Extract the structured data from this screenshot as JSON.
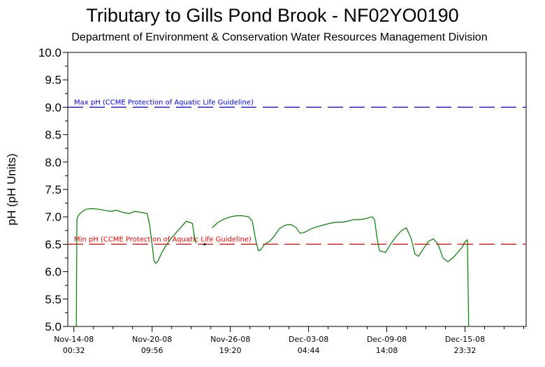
{
  "chart_data": {
    "type": "line",
    "title": "Tributary to Gills Pond Brook - NF02YO0190",
    "subtitle": "Department of Environment & Conservation Water Resources Management Division",
    "ylabel": "pH (pH Units)",
    "xlabel": "",
    "ylim": [
      5.0,
      10.0
    ],
    "y_ticks": [
      {
        "value": 5.0,
        "label": "5.0"
      },
      {
        "value": 5.5,
        "label": "5.5"
      },
      {
        "value": 6.0,
        "label": "6.0"
      },
      {
        "value": 6.5,
        "label": "6.5"
      },
      {
        "value": 7.0,
        "label": "7.0"
      },
      {
        "value": 7.5,
        "label": "7.5"
      },
      {
        "value": 8.0,
        "label": "8.0"
      },
      {
        "value": 8.5,
        "label": "8.5"
      },
      {
        "value": 9.0,
        "label": "9.0"
      },
      {
        "value": 9.5,
        "label": "9.5"
      },
      {
        "value": 10.0,
        "label": "10.0"
      }
    ],
    "x_unit": "days",
    "xlim": [
      -0.5,
      37.0
    ],
    "x_ticks": [
      {
        "value": 0.0,
        "line1": "Nov-14-08",
        "line2": "00:32"
      },
      {
        "value": 6.4,
        "line1": "Nov-20-08",
        "line2": "09:56"
      },
      {
        "value": 12.8,
        "line1": "Nov-26-08",
        "line2": "19:20"
      },
      {
        "value": 19.2,
        "line1": "Dec-03-08",
        "line2": "04:44"
      },
      {
        "value": 25.6,
        "line1": "Dec-09-08",
        "line2": "14:08"
      },
      {
        "value": 32.0,
        "line1": "Dec-15-08",
        "line2": "23:32"
      }
    ],
    "guidelines": [
      {
        "name": "Max pH (CCME Protection of Aquatic Life Guideline)",
        "value": 9.0,
        "color": "#0000ff"
      },
      {
        "name": "Min pH (CCME Protection of Aquatic Life Guideline)",
        "value": 6.5,
        "color": "#ff0000"
      }
    ],
    "series": [
      {
        "name": "",
        "color": "#008000",
        "segments": [
          {
            "x": [
              0.2,
              0.25,
              0.35,
              0.6,
              1.0,
              1.5,
              2.0,
              2.5,
              3.0,
              3.5,
              4.0,
              4.5,
              5.0,
              5.5,
              6.0,
              6.2,
              6.4,
              6.55,
              6.7,
              6.9,
              7.2,
              7.6,
              8.0,
              8.4,
              8.8,
              9.2,
              9.7,
              9.9,
              10.0
            ],
            "y": [
              5.0,
              6.95,
              7.02,
              7.08,
              7.14,
              7.15,
              7.14,
              7.12,
              7.1,
              7.12,
              7.08,
              7.06,
              7.1,
              7.08,
              7.06,
              6.85,
              6.5,
              6.2,
              6.15,
              6.2,
              6.35,
              6.5,
              6.62,
              6.72,
              6.82,
              6.92,
              6.88,
              6.58,
              6.52
            ]
          },
          {
            "x": [
              11.3,
              11.8,
              12.3,
              12.8,
              13.3,
              13.8,
              14.3,
              14.6,
              14.9,
              15.1,
              15.3,
              15.6,
              16.0,
              16.4,
              16.8,
              17.3,
              17.8,
              18.2,
              18.5,
              18.9,
              19.4,
              19.9,
              20.4,
              20.9,
              21.4,
              21.9,
              22.4,
              22.9,
              23.4,
              23.9,
              24.4,
              24.6,
              24.8,
              25.0
            ],
            "y": [
              6.8,
              6.9,
              6.96,
              7.0,
              7.02,
              7.02,
              7.0,
              6.92,
              6.55,
              6.38,
              6.4,
              6.5,
              6.55,
              6.65,
              6.78,
              6.85,
              6.86,
              6.8,
              6.7,
              6.72,
              6.78,
              6.82,
              6.85,
              6.88,
              6.9,
              6.9,
              6.92,
              6.95,
              6.95,
              6.97,
              7.0,
              6.95,
              6.62,
              6.38
            ]
          },
          {
            "x": [
              25.0,
              25.5,
              25.9,
              26.4,
              26.8,
              27.2,
              27.6,
              27.9,
              28.2,
              28.6,
              29.0,
              29.4,
              29.8,
              30.2,
              30.6,
              31.0,
              31.4,
              31.8,
              32.0,
              32.2,
              32.3
            ],
            "y": [
              6.38,
              6.35,
              6.5,
              6.65,
              6.75,
              6.8,
              6.6,
              6.32,
              6.28,
              6.42,
              6.55,
              6.6,
              6.5,
              6.25,
              6.18,
              6.25,
              6.35,
              6.45,
              6.55,
              6.58,
              5.0
            ]
          }
        ]
      }
    ],
    "isolated_points": [
      {
        "x": 10.7,
        "y": 6.5
      }
    ]
  }
}
